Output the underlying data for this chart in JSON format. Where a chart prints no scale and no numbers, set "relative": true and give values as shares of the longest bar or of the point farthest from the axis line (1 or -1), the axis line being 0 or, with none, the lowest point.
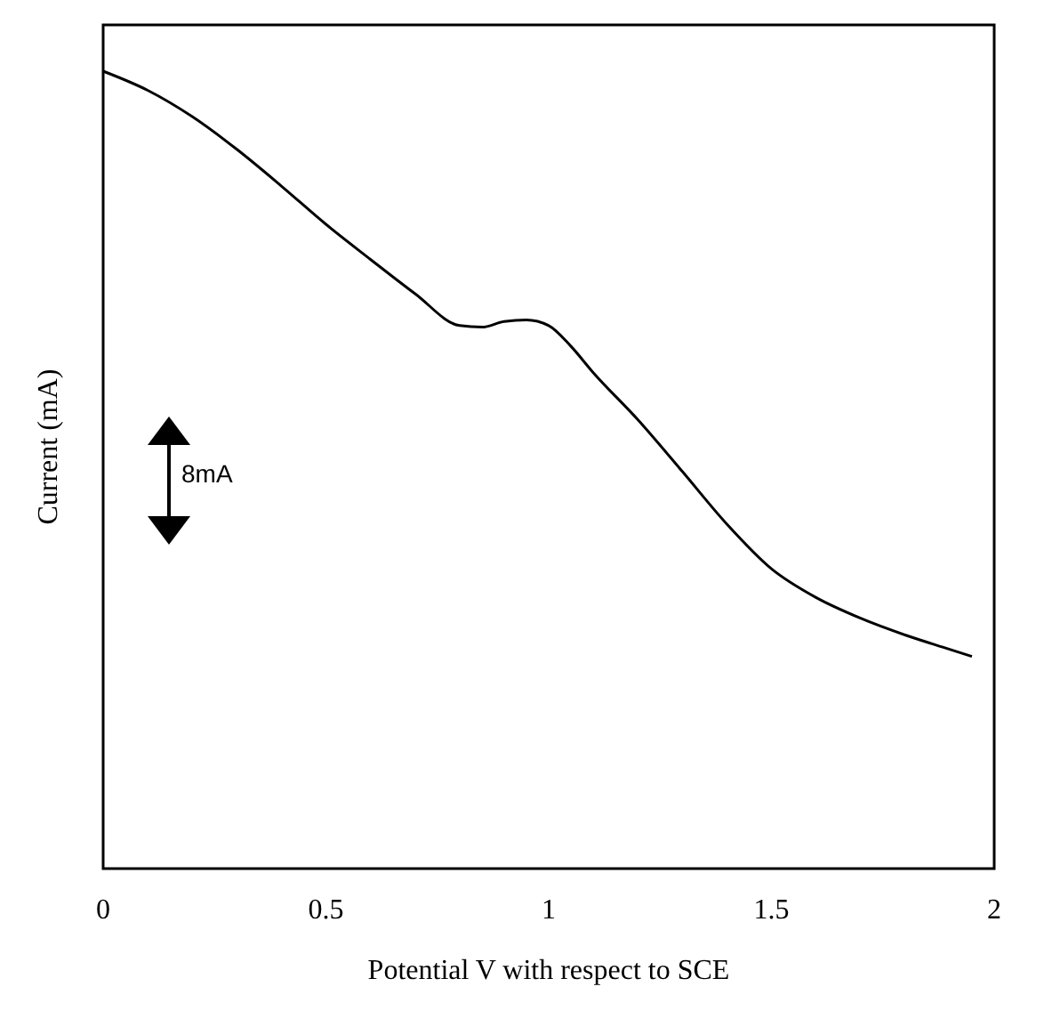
{
  "chart_data": {
    "type": "line",
    "relative": true,
    "xlabel": "Potential V with respect to  SCE",
    "ylabel": "Current  (mA)",
    "annotations": [
      "8mA"
    ],
    "xlim": [
      0,
      2
    ],
    "xticks": [
      0,
      0.5,
      1,
      1.5,
      2
    ],
    "line_style": "solid",
    "series": [
      {
        "color": "#000000",
        "x": [
          0,
          0.1,
          0.2,
          0.3,
          0.4,
          0.5,
          0.6,
          0.7,
          0.8,
          0.85,
          0.9,
          0.95,
          1.0,
          1.05,
          1.1,
          1.2,
          1.3,
          1.4,
          1.5,
          1.6,
          1.7,
          1.8,
          1.9,
          1.95
        ],
        "values": [
          1,
          0.976,
          0.943,
          0.902,
          0.856,
          0.808,
          0.764,
          0.721,
          0.681,
          0.679,
          0.686,
          0.688,
          0.681,
          0.655,
          0.622,
          0.563,
          0.498,
          0.432,
          0.376,
          0.34,
          0.314,
          0.293,
          0.275,
          0.266
        ]
      }
    ]
  }
}
